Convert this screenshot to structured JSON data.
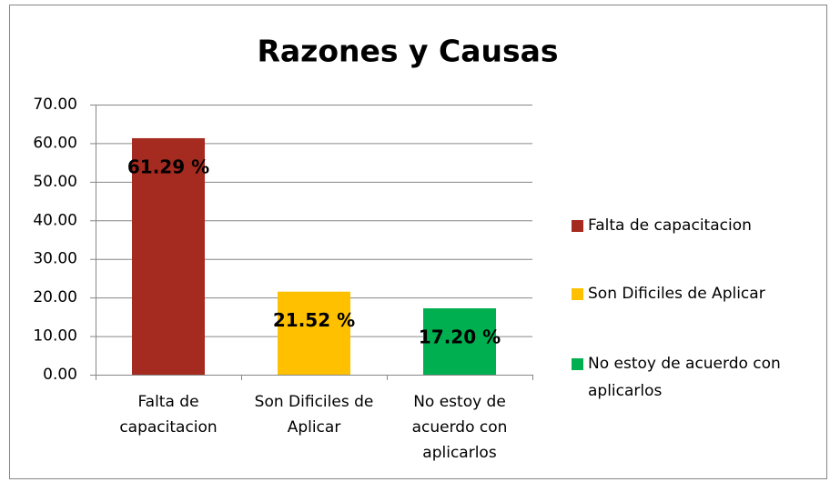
{
  "chart_data": {
    "type": "bar",
    "title": "Razones y Causas",
    "categories": [
      "Falta de capacitacion",
      "Son Dificiles de Aplicar",
      "No estoy de acuerdo con aplicarlos"
    ],
    "values": [
      61.29,
      21.52,
      17.2
    ],
    "value_labels": [
      "61.29 %",
      "21.52 %",
      "17.20 %"
    ],
    "colors": [
      "#a52a1f",
      "#ffc000",
      "#00b050"
    ],
    "ylim": [
      0,
      70
    ],
    "yticks": [
      {
        "value": 0,
        "label": "0.00"
      },
      {
        "value": 10,
        "label": "10.00"
      },
      {
        "value": 20,
        "label": "20.00"
      },
      {
        "value": 30,
        "label": "30.00"
      },
      {
        "value": 40,
        "label": "40.00"
      },
      {
        "value": 50,
        "label": "50.00"
      },
      {
        "value": 60,
        "label": "60.00"
      },
      {
        "value": 70,
        "label": "70.00"
      }
    ],
    "grid": true,
    "legend": "right"
  }
}
